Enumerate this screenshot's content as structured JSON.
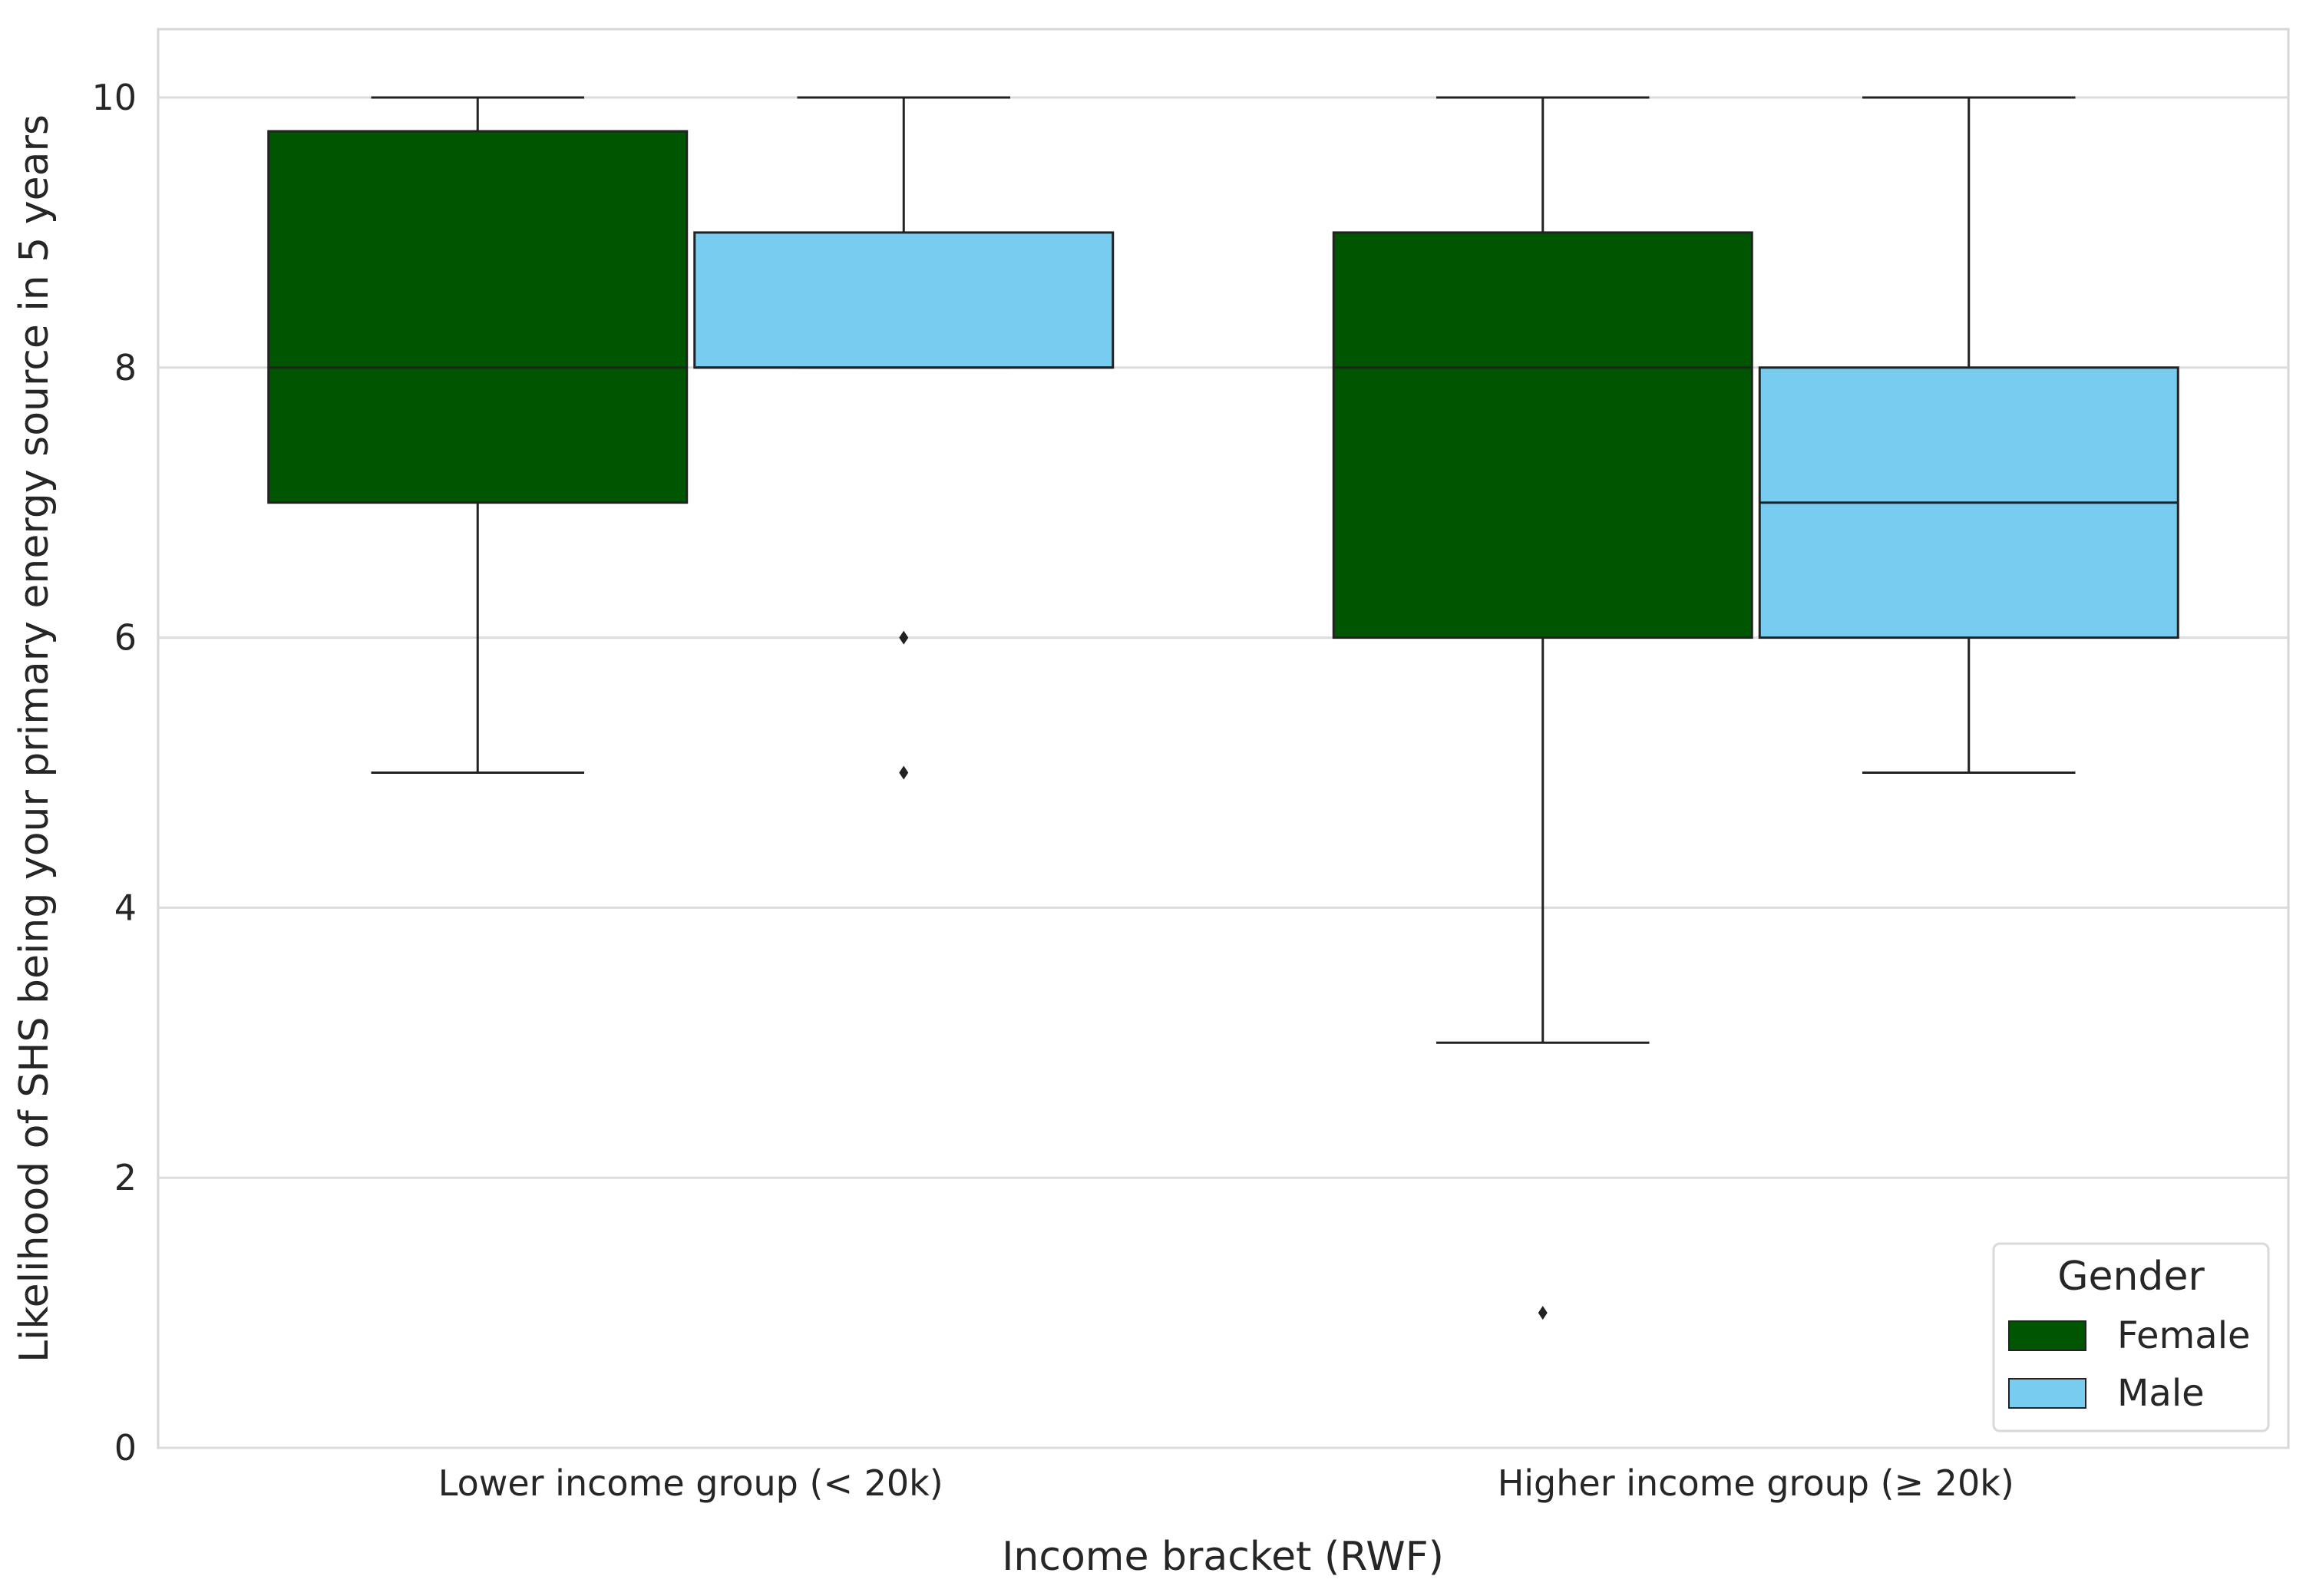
{
  "chart_data": {
    "type": "box",
    "xlabel": "Income bracket (RWF)",
    "ylabel": "Likelihood of SHS being your primary energy source in 5 years",
    "ylim": [
      0,
      10.5
    ],
    "yticks": [
      0,
      2,
      4,
      6,
      8,
      10
    ],
    "grid": true,
    "categories": [
      "Lower income group (< 20k)",
      "Higher income group (≥ 20k)"
    ],
    "legend": {
      "title": "Gender",
      "placement": "lower-right",
      "entries": [
        {
          "label": "Female",
          "color": "#005500"
        },
        {
          "label": "Male",
          "color": "#78CCF0"
        }
      ]
    },
    "series": [
      {
        "name": "Female",
        "color": "#005500",
        "boxes": [
          {
            "whisker_low": 5,
            "q1": 7,
            "median": 8,
            "q3": 9.75,
            "whisker_high": 10,
            "outliers": []
          },
          {
            "whisker_low": 3,
            "q1": 6,
            "median": 8,
            "q3": 9,
            "whisker_high": 10,
            "outliers": [
              1
            ]
          }
        ]
      },
      {
        "name": "Male",
        "color": "#78CCF0",
        "boxes": [
          {
            "whisker_low": 8,
            "q1": 8,
            "median": 8,
            "q3": 9,
            "whisker_high": 10,
            "outliers": [
              6,
              5
            ]
          },
          {
            "whisker_low": 5,
            "q1": 6,
            "median": 7,
            "q3": 8,
            "whisker_high": 10,
            "outliers": []
          }
        ]
      }
    ]
  }
}
